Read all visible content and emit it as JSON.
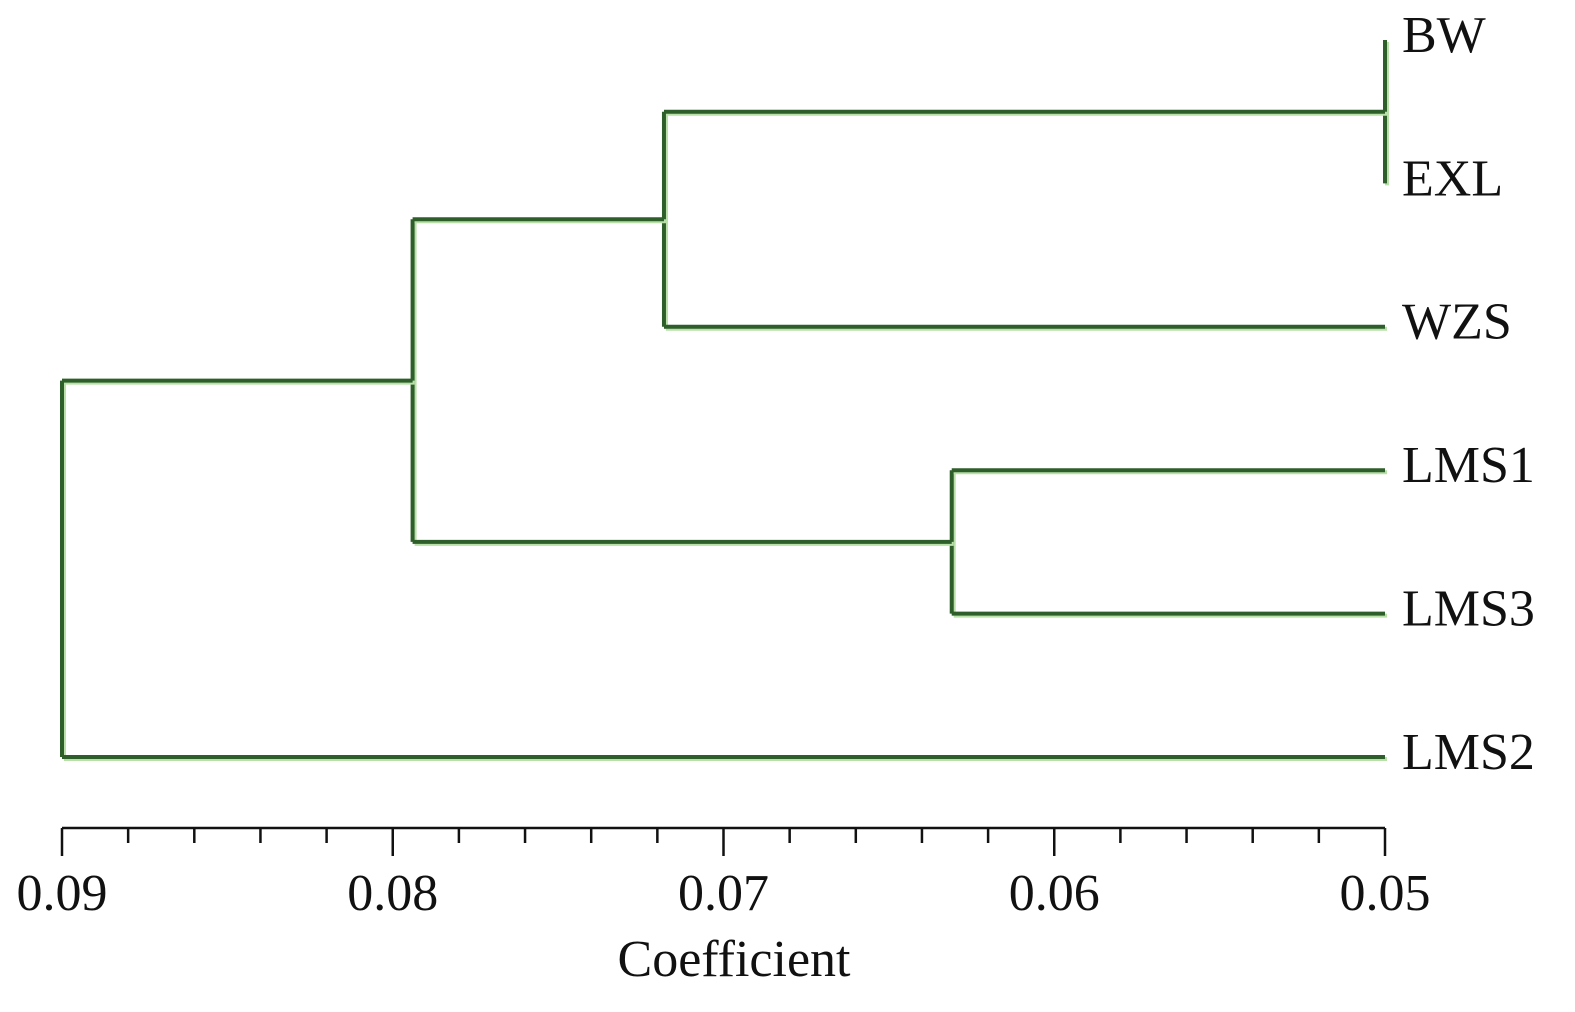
{
  "chart_data": {
    "type": "dendrogram",
    "xlabel": "Coefficient",
    "color": "#2e5f2a",
    "xlim": [
      0.09,
      0.05
    ],
    "xticks": [
      0.09,
      0.08,
      0.07,
      0.06,
      0.05
    ],
    "xminorticks": [
      0.088,
      0.086,
      0.084,
      0.082,
      0.078,
      0.076,
      0.074,
      0.072,
      0.068,
      0.066,
      0.064,
      0.062,
      0.058,
      0.056,
      0.054,
      0.052
    ],
    "tree": {
      "height": 0.09,
      "children": [
        {
          "height": 0.0794,
          "children": [
            {
              "height": 0.0718,
              "children": [
                {
                  "height": 0.05,
                  "children": [
                    {
                      "label": "BW"
                    },
                    {
                      "label": "EXL"
                    }
                  ]
                },
                {
                  "label": "WZS"
                }
              ]
            },
            {
              "height": 0.0631,
              "children": [
                {
                  "label": "LMS1"
                },
                {
                  "label": "LMS3"
                }
              ]
            }
          ]
        },
        {
          "label": "LMS2"
        }
      ]
    }
  }
}
